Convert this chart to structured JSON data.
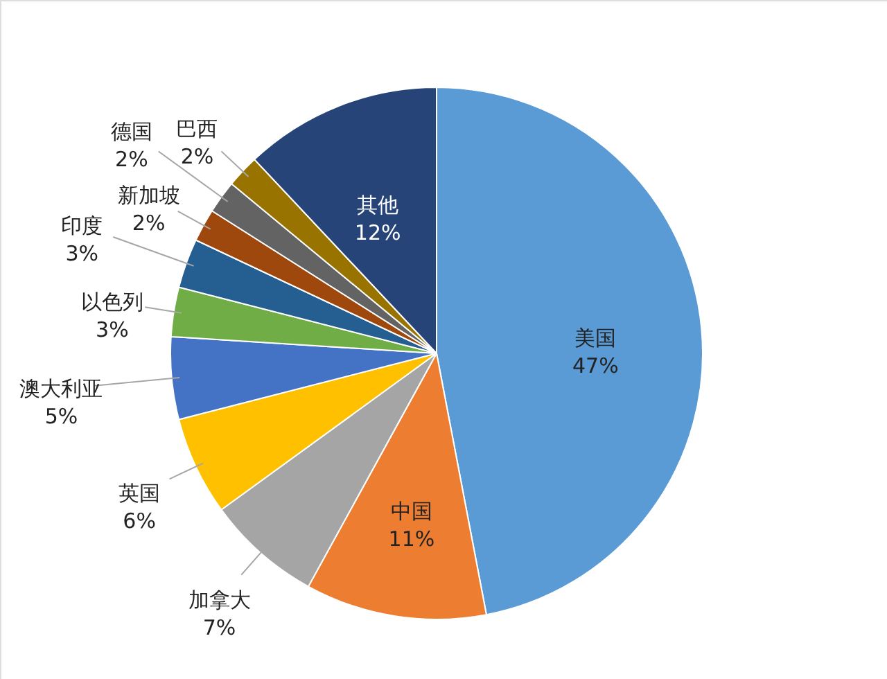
{
  "chart_data": {
    "type": "pie",
    "categories": [
      "美国",
      "中国",
      "加拿大",
      "英国",
      "澳大利亚",
      "以色列",
      "印度",
      "新加坡",
      "德国",
      "巴西",
      "其他"
    ],
    "values": [
      47,
      11,
      7,
      6,
      5,
      3,
      3,
      2,
      2,
      2,
      12
    ],
    "colors": [
      "#5b9bd5",
      "#ed7d31",
      "#a5a5a5",
      "#ffc000",
      "#4472c4",
      "#70ad47",
      "#255e91",
      "#9e480e",
      "#636363",
      "#997300",
      "#264478"
    ],
    "value_labels": [
      "47%",
      "11%",
      "7%",
      "6%",
      "5%",
      "3%",
      "3%",
      "2%",
      "2%",
      "2%",
      "12%"
    ]
  }
}
